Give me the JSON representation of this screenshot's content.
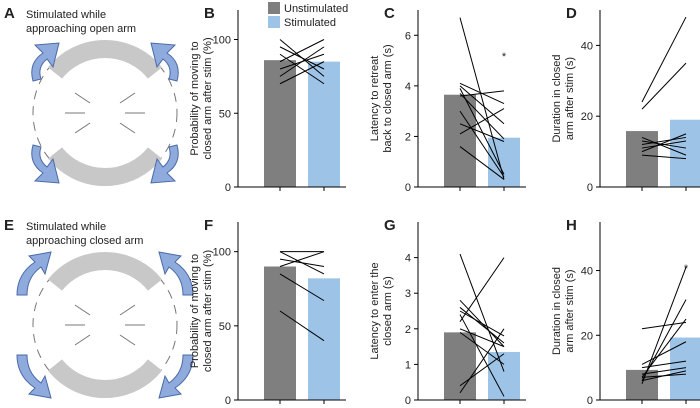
{
  "legend": [
    {
      "name": "Unstimulated",
      "color": "#7f7f7f"
    },
    {
      "name": "Stimulated",
      "color": "#9dc3e6"
    }
  ],
  "diagrams": [
    {
      "label": "A",
      "caption": [
        "Stimulated while",
        "approaching open arm"
      ]
    },
    {
      "label": "E",
      "caption": [
        "Stimulated while",
        "approaching closed arm"
      ]
    }
  ],
  "chart_data": [
    {
      "type": "bar",
      "label": "B",
      "ylabel": [
        "Probability of moving to",
        "closed arm after stim (%)"
      ],
      "values": [
        86,
        85
      ],
      "ylim": [
        0,
        120
      ],
      "yticks": [
        0,
        50,
        100
      ],
      "pairs": [
        [
          85,
          100
        ],
        [
          90,
          70
        ],
        [
          75,
          95
        ],
        [
          95,
          80
        ],
        [
          80,
          90
        ],
        [
          100,
          75
        ],
        [
          70,
          85
        ]
      ]
    },
    {
      "type": "bar",
      "label": "C",
      "ylabel": [
        "Latency to retreat",
        "back to closed arm (s)"
      ],
      "values": [
        3.65,
        1.95
      ],
      "ylim": [
        0,
        7
      ],
      "yticks": [
        0,
        2,
        4,
        6
      ],
      "annotation": "*",
      "pairs": [
        [
          6.7,
          0.3
        ],
        [
          4.1,
          3.3
        ],
        [
          3.9,
          0.5
        ],
        [
          3.7,
          1.9
        ],
        [
          3.6,
          3.8
        ],
        [
          3.0,
          0.4
        ],
        [
          2.5,
          1.8
        ],
        [
          2.1,
          3.1
        ],
        [
          1.6,
          0.3
        ],
        [
          4.0,
          2.5
        ]
      ]
    },
    {
      "type": "bar",
      "label": "D",
      "ylabel": [
        "Duration in closed",
        "arm after stim (s)"
      ],
      "values": [
        15.8,
        19
      ],
      "ylim": [
        0,
        50
      ],
      "yticks": [
        0,
        20,
        40
      ],
      "pairs": [
        [
          24,
          48
        ],
        [
          22,
          35
        ],
        [
          14,
          9
        ],
        [
          12,
          14
        ],
        [
          11,
          13
        ],
        [
          10,
          15
        ],
        [
          9,
          8
        ],
        [
          13,
          11
        ]
      ]
    },
    {
      "type": "bar",
      "label": "F",
      "ylabel": [
        "Probability of moving to",
        "closed arm after stim (%)"
      ],
      "values": [
        90,
        82
      ],
      "ylim": [
        0,
        120
      ],
      "yticks": [
        0,
        50,
        100
      ],
      "pairs": [
        [
          100,
          100
        ],
        [
          95,
          90
        ],
        [
          90,
          100
        ],
        [
          85,
          67
        ],
        [
          60,
          40
        ],
        [
          100,
          85
        ]
      ]
    },
    {
      "type": "bar",
      "label": "G",
      "ylabel": [
        "Latency to enter the",
        "closed arm (s)"
      ],
      "values": [
        1.9,
        1.35
      ],
      "ylim": [
        0,
        5
      ],
      "yticks": [
        0,
        1,
        2,
        3,
        4
      ],
      "pairs": [
        [
          4.1,
          0.8
        ],
        [
          2.8,
          1.5
        ],
        [
          2.6,
          1.6
        ],
        [
          2.4,
          0.1
        ],
        [
          2.2,
          4.0
        ],
        [
          2.0,
          1.5
        ],
        [
          1.9,
          1.0
        ],
        [
          0.4,
          1.3
        ],
        [
          0.2,
          2.0
        ],
        [
          2.5,
          1.8
        ]
      ]
    },
    {
      "type": "bar",
      "label": "H",
      "ylabel": [
        "Duration in closed",
        "arm after stim (s)"
      ],
      "values": [
        9.3,
        19.3
      ],
      "ylim": [
        0,
        55
      ],
      "yticks": [
        0,
        20,
        40
      ],
      "annotation": "*",
      "pairs": [
        [
          5,
          41
        ],
        [
          6,
          31
        ],
        [
          7,
          25
        ],
        [
          22,
          24
        ],
        [
          11,
          18
        ],
        [
          10,
          12
        ],
        [
          8,
          10
        ],
        [
          6,
          9
        ],
        [
          7,
          8
        ]
      ]
    }
  ]
}
